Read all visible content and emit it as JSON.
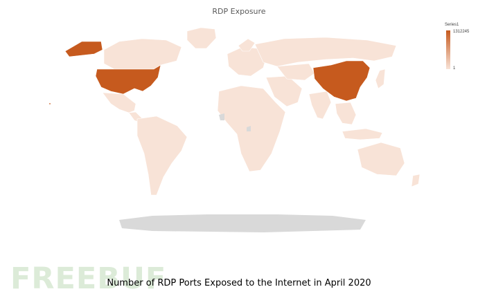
{
  "map": {
    "title": "RDP Exposure",
    "legend": {
      "series_name": "Series1",
      "max_label": "1312245",
      "min_label": "1",
      "max_value": 1312245,
      "min_value": 1
    },
    "colors": {
      "low": "#f8e3d7",
      "high": "#c65a1e",
      "no_data": "#d9d9d9"
    },
    "highlighted_regions": [
      "United States",
      "China"
    ]
  },
  "watermark": "FREEBUF",
  "caption": "Number of RDP Ports Exposed to the Internet in April 2020"
}
